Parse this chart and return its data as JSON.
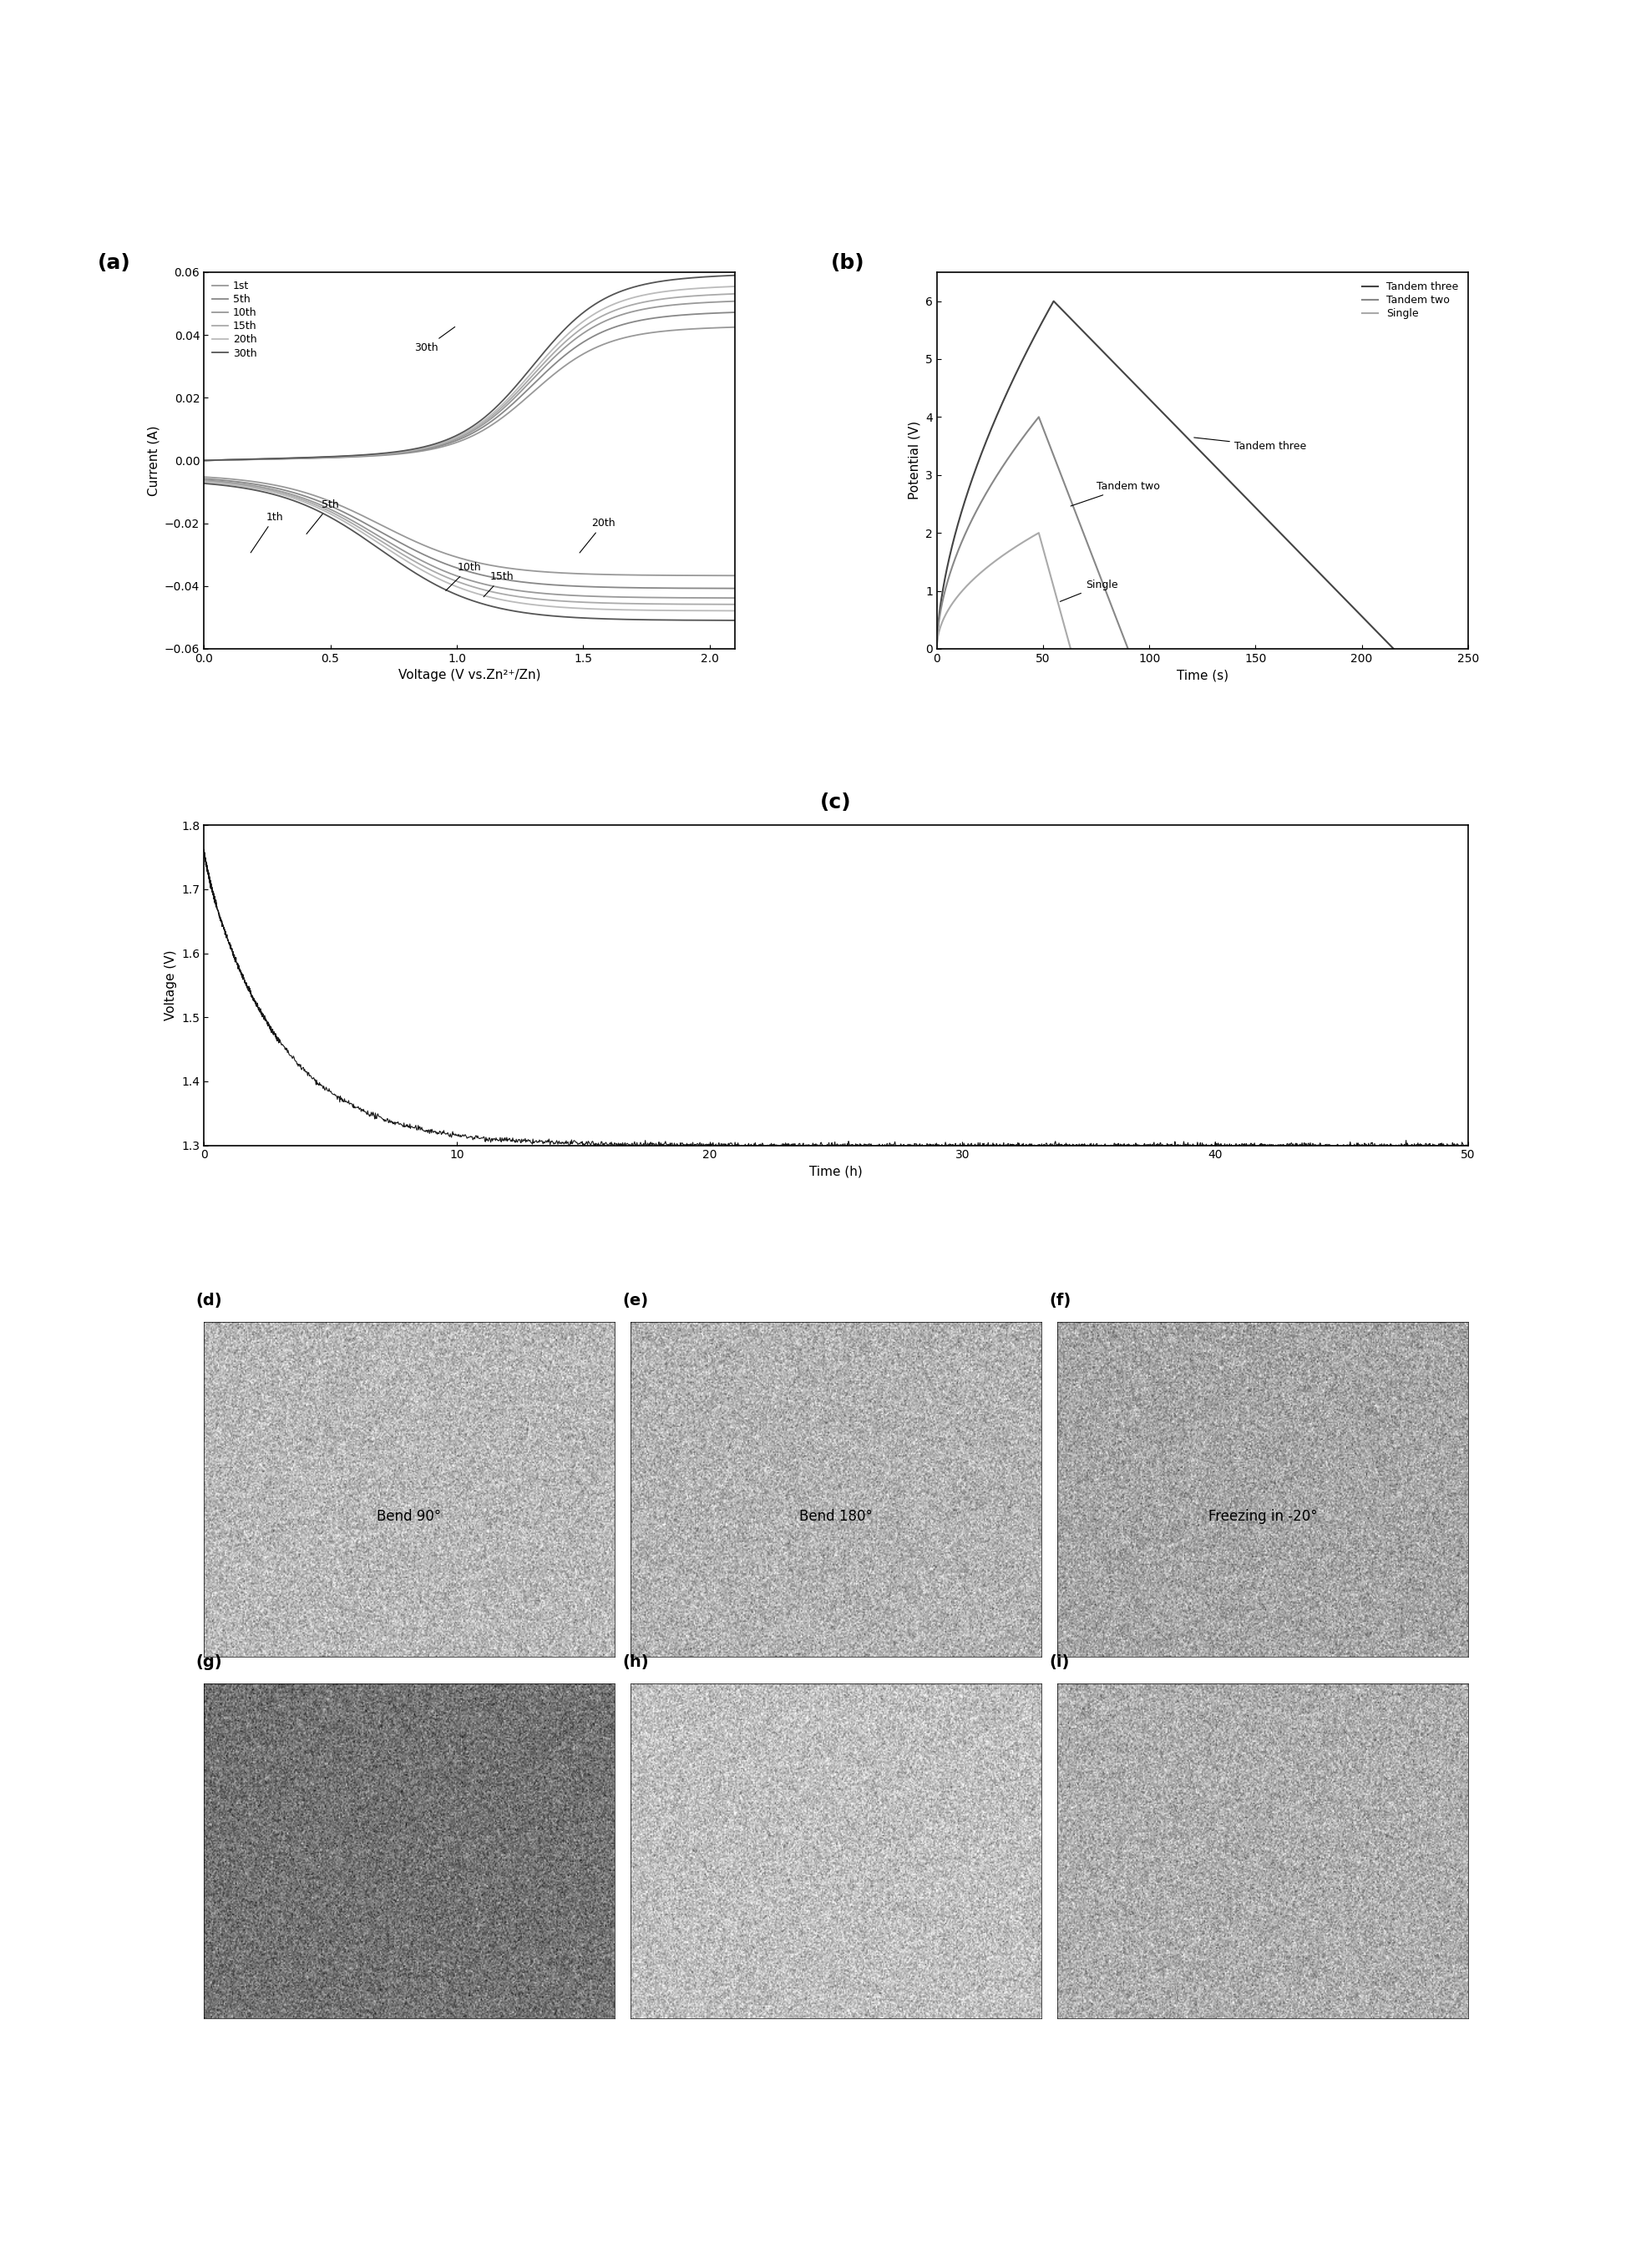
{
  "panel_a": {
    "title": "(a)",
    "xlabel": "Voltage (V vs.Zn²⁺/Zn)",
    "ylabel": "Current (A)",
    "ylim": [
      -0.06,
      0.06
    ],
    "xlim": [
      0.0,
      2.1
    ],
    "yticks": [
      -0.06,
      -0.04,
      -0.02,
      0.0,
      0.02,
      0.04,
      0.06
    ],
    "xticks": [
      0.0,
      0.5,
      1.0,
      1.5,
      2.0
    ],
    "legend_labels": [
      "1st",
      "5th",
      "10th",
      "15th",
      "20th",
      "30th"
    ],
    "legend_colors": [
      "#888888",
      "#999999",
      "#aaaaaa",
      "#bbbbbb",
      "#cccccc",
      "#444444"
    ],
    "cycle_scales": [
      0.72,
      0.8,
      0.86,
      0.9,
      0.94,
      1.0
    ]
  },
  "panel_b": {
    "title": "(b)",
    "xlabel": "Time (s)",
    "ylabel": "Potential (V)",
    "ylim": [
      0,
      6.5
    ],
    "xlim": [
      0,
      250
    ],
    "yticks": [
      0,
      1,
      2,
      3,
      4,
      5,
      6
    ],
    "xticks": [
      0,
      50,
      100,
      150,
      200,
      250
    ],
    "legend_labels": [
      "Tandem three",
      "Tandem two",
      "Single"
    ],
    "colors_b": [
      "#444444",
      "#888888",
      "#aaaaaa"
    ]
  },
  "panel_c": {
    "title": "(c)",
    "xlabel": "Time (h)",
    "ylabel": "Voltage (V)",
    "ylim": [
      1.3,
      1.8
    ],
    "xlim": [
      0,
      50
    ],
    "yticks": [
      1.3,
      1.4,
      1.5,
      1.6,
      1.7,
      1.8
    ],
    "xticks": [
      0,
      10,
      20,
      30,
      40,
      50
    ]
  },
  "photo_labels": [
    "(d)",
    "(e)",
    "(f)",
    "(g)",
    "(h)",
    "(i)"
  ],
  "photo_texts": [
    "Bend 90°",
    "Bend 180°",
    "Freezing in -20°",
    "",
    "",
    ""
  ]
}
